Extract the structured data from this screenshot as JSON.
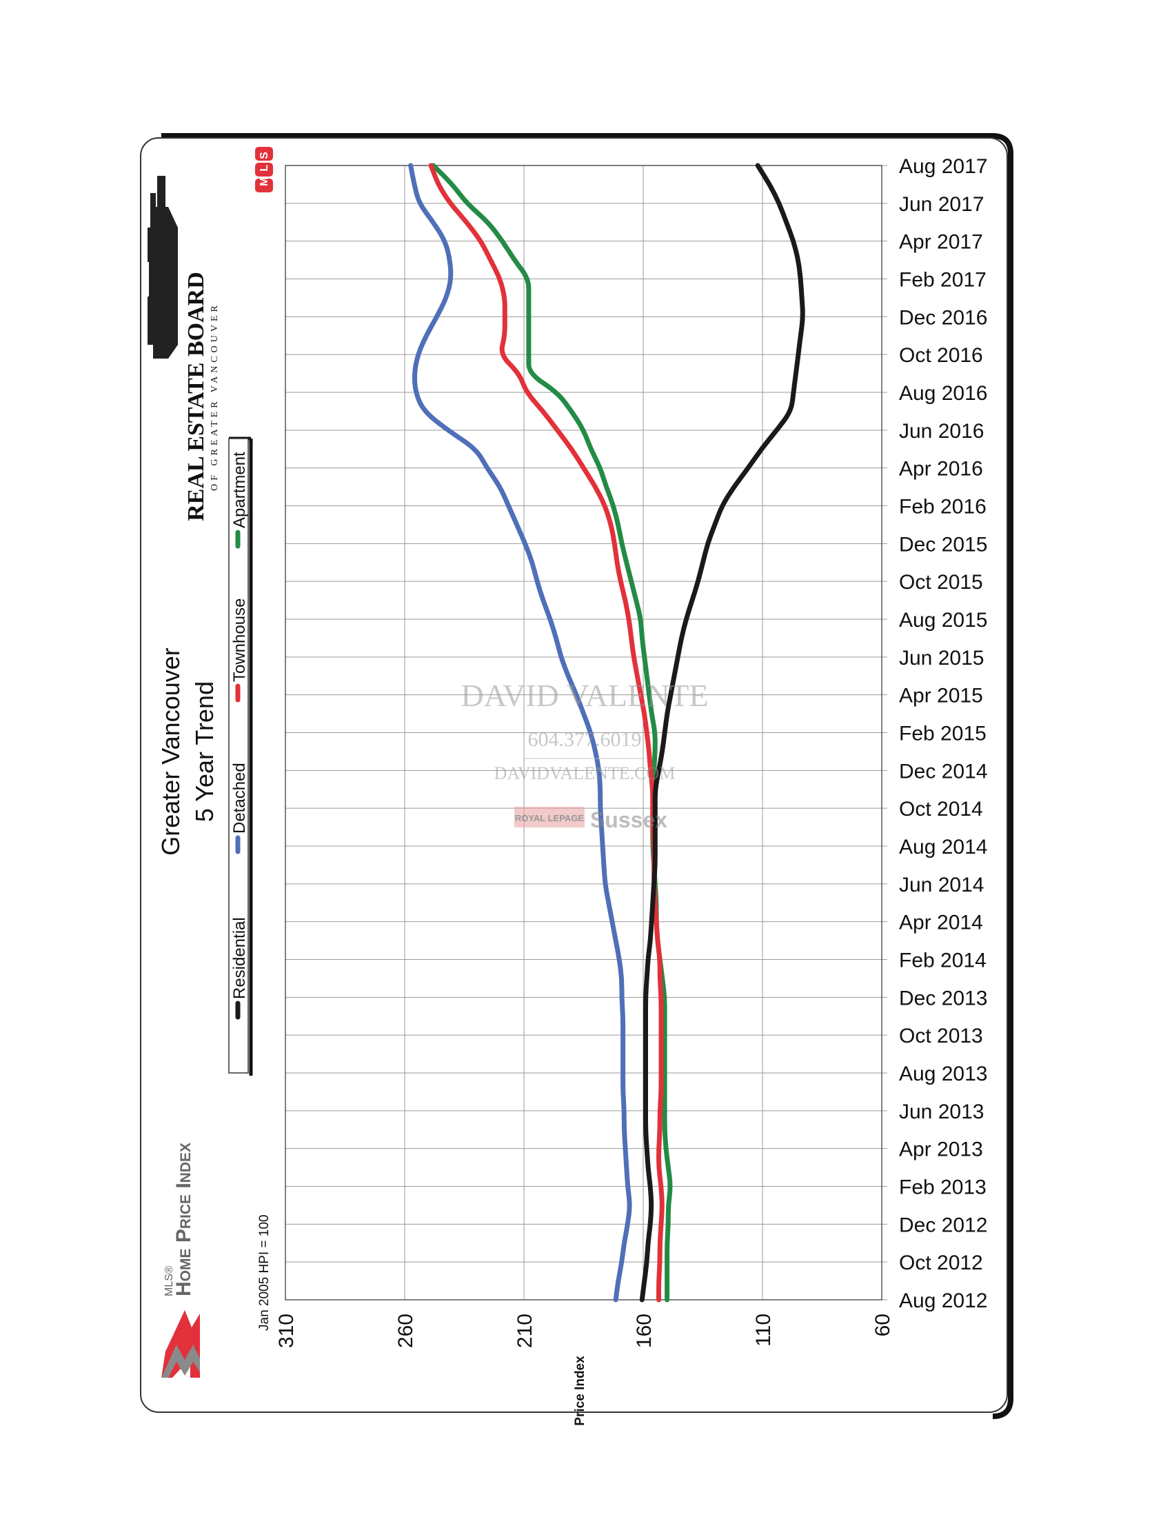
{
  "branding": {
    "hpi_small": "MLS®",
    "hpi_big": "Home Price Index",
    "board_name": "REAL ESTATE BOARD",
    "board_sub": "OF GREATER VANCOUVER",
    "mls_logo": "MLS"
  },
  "watermark": {
    "name": "DAVID VALENTE",
    "phone": "604.377.6019",
    "site": "DAVIDVALENTE.COM",
    "brokerage_small": "ROYAL LEPAGE",
    "brokerage_big": "Sussex"
  },
  "colors": {
    "Residential": "#1a1a1a",
    "Detached": "#4f6fb8",
    "Townhouse": "#e2313a",
    "Apartment": "#238b45"
  },
  "chart_data": {
    "type": "line",
    "title": "Greater Vancouver",
    "subtitle": "5 Year Trend",
    "note": "Jan 2005 HPI = 100",
    "ylabel": "Price Index",
    "ylim": [
      60,
      310
    ],
    "yticks": [
      310,
      260,
      210,
      160,
      110,
      60
    ],
    "grid": true,
    "legend": [
      "Residential",
      "Detached",
      "Townhouse",
      "Apartment"
    ],
    "x_tick_labels": [
      "Aug 2012",
      "Oct 2012",
      "Dec 2012",
      "Feb 2013",
      "Apr 2013",
      "Jun 2013",
      "Aug 2013",
      "Oct 2013",
      "Dec 2013",
      "Feb 2014",
      "Apr 2014",
      "Jun 2014",
      "Aug 2014",
      "Oct 2014",
      "Dec 2014",
      "Feb 2015",
      "Apr 2015",
      "Jun 2015",
      "Aug 2015",
      "Oct 2015",
      "Dec 2015",
      "Feb 2016",
      "Apr 2016",
      "Jun 2016",
      "Aug 2016",
      "Oct 2016",
      "Dec 2016",
      "Feb 2017",
      "Apr 2017",
      "Jun 2017",
      "Aug 2017"
    ],
    "x": [
      "Aug 2012",
      "Sep 2012",
      "Oct 2012",
      "Nov 2012",
      "Dec 2012",
      "Jan 2013",
      "Feb 2013",
      "Mar 2013",
      "Apr 2013",
      "May 2013",
      "Jun 2013",
      "Jul 2013",
      "Aug 2013",
      "Sep 2013",
      "Oct 2013",
      "Nov 2013",
      "Dec 2013",
      "Jan 2014",
      "Feb 2014",
      "Mar 2014",
      "Apr 2014",
      "May 2014",
      "Jun 2014",
      "Jul 2014",
      "Aug 2014",
      "Sep 2014",
      "Oct 2014",
      "Nov 2014",
      "Dec 2014",
      "Jan 2015",
      "Feb 2015",
      "Mar 2015",
      "Apr 2015",
      "May 2015",
      "Jun 2015",
      "Jul 2015",
      "Aug 2015",
      "Sep 2015",
      "Oct 2015",
      "Nov 2015",
      "Dec 2015",
      "Jan 2016",
      "Feb 2016",
      "Mar 2016",
      "Apr 2016",
      "May 2016",
      "Jun 2016",
      "Jul 2016",
      "Aug 2016",
      "Sep 2016",
      "Oct 2016",
      "Nov 2016",
      "Dec 2016",
      "Jan 2017",
      "Feb 2017",
      "Mar 2017",
      "Apr 2017",
      "May 2017",
      "Jun 2017",
      "Jul 2017",
      "Aug 2017"
    ],
    "series": [
      {
        "name": "Residential",
        "values": [
          160.5,
          159.5,
          158.5,
          158,
          157,
          156.5,
          157,
          158,
          158.5,
          159,
          159,
          159,
          159,
          159,
          159,
          159,
          159,
          158.5,
          158,
          157,
          156.5,
          156,
          155.5,
          155,
          155,
          155,
          155,
          155,
          153.5,
          152,
          151,
          150,
          148.5,
          147,
          145.5,
          144,
          142,
          139.5,
          137,
          135,
          133,
          130,
          127,
          122,
          116,
          110.5,
          104,
          98,
          97,
          96,
          95,
          94,
          93,
          93.5,
          94,
          95,
          97,
          100,
          103,
          107,
          112
        ]
      },
      {
        "name": "Detached",
        "values": [
          171.5,
          170.5,
          169,
          168,
          166.5,
          165.5,
          166.5,
          167,
          167.5,
          168,
          168,
          168.5,
          168.5,
          168.5,
          168.5,
          168.5,
          169,
          169,
          170,
          171.5,
          173,
          174.5,
          176,
          176.5,
          177,
          177.5,
          178,
          178,
          178.5,
          180,
          182,
          185,
          188,
          191.5,
          194.5,
          196.5,
          199,
          202,
          204.5,
          206.5,
          209.5,
          213,
          216.5,
          220,
          225.5,
          230,
          242,
          252,
          255.5,
          256,
          254.5,
          251,
          246.5,
          242.5,
          240.5,
          241,
          243,
          248,
          254,
          256,
          257.5
        ]
      },
      {
        "name": "Townhouse",
        "values": [
          153.5,
          153.5,
          153,
          153,
          152.5,
          152,
          152.5,
          153.5,
          153.5,
          153,
          153,
          152.5,
          152.5,
          152.5,
          152.5,
          152.5,
          152.5,
          153,
          153,
          154,
          154.5,
          155,
          155.5,
          155.5,
          155.5,
          156,
          156,
          156,
          157,
          157.5,
          158.5,
          159.5,
          161,
          162.5,
          164,
          165,
          166,
          167.5,
          169.5,
          171,
          172,
          173.5,
          176,
          180,
          185,
          190,
          196,
          202,
          209,
          212,
          220,
          218,
          218,
          218,
          220,
          224,
          228,
          234,
          241,
          246,
          249
        ]
      },
      {
        "name": "Apartment",
        "values": [
          150,
          150,
          150,
          150,
          149.5,
          149.5,
          148.5,
          149.5,
          150.5,
          151,
          151,
          151,
          151,
          151,
          151,
          151,
          151,
          152,
          153,
          154,
          154.5,
          154.5,
          155,
          155.5,
          156,
          156,
          156,
          156,
          155.5,
          155,
          155,
          156.5,
          157.5,
          158.5,
          159.5,
          160.5,
          161,
          163,
          165,
          167,
          169,
          170.5,
          172.5,
          175.5,
          178,
          182,
          185,
          190,
          196,
          208,
          208,
          208,
          208,
          208,
          208,
          214,
          219,
          225,
          234,
          240,
          248
        ]
      }
    ]
  }
}
